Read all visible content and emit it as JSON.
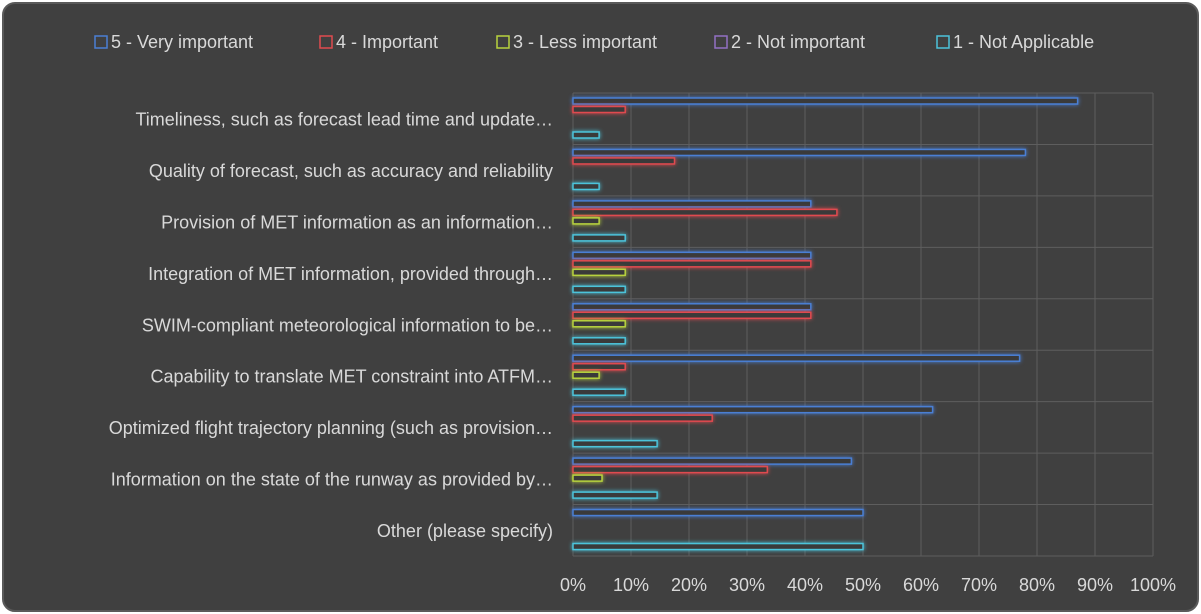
{
  "chart_data": {
    "type": "bar",
    "orientation": "horizontal",
    "categories": [
      "Timeliness, such as forecast lead time and update…",
      "Quality of forecast, such as accuracy and reliability",
      "Provision of MET information as an information…",
      "Integration of MET information, provided through…",
      "SWIM-compliant meteorological information to be…",
      "Capability to translate MET constraint into ATFM…",
      "Optimized flight trajectory planning (such as provision…",
      "Information on the state of the runway as provided by…",
      "Other (please specify)"
    ],
    "series": [
      {
        "name": "5 - Very important",
        "color": "#4a7fd4",
        "values": [
          87,
          78,
          41,
          41,
          41,
          77,
          62,
          48,
          50
        ]
      },
      {
        "name": "4 - Important",
        "color": "#e04a4f",
        "values": [
          9,
          17.5,
          45.5,
          41,
          41,
          9,
          24,
          33.5,
          0
        ]
      },
      {
        "name": "3 - Less important",
        "color": "#b7d23e",
        "values": [
          0,
          0,
          4.5,
          9,
          9,
          4.5,
          0,
          5,
          0
        ]
      },
      {
        "name": "2 - Not important",
        "color": "#9270c4",
        "values": [
          0,
          0,
          0,
          0,
          0,
          0,
          0,
          0,
          0
        ]
      },
      {
        "name": "1 - Not Applicable",
        "color": "#4cc3da",
        "values": [
          4.5,
          4.5,
          9,
          9,
          9,
          9,
          14.5,
          14.5,
          50
        ]
      }
    ],
    "xlim": [
      0,
      100
    ],
    "xticks": [
      {
        "value": 0,
        "label": "0%"
      },
      {
        "value": 10,
        "label": "10%"
      },
      {
        "value": 20,
        "label": "20%"
      },
      {
        "value": 30,
        "label": "30%"
      },
      {
        "value": 40,
        "label": "40%"
      },
      {
        "value": 50,
        "label": "50%"
      },
      {
        "value": 60,
        "label": "60%"
      },
      {
        "value": 70,
        "label": "70%"
      },
      {
        "value": 80,
        "label": "80%"
      },
      {
        "value": 90,
        "label": "90%"
      },
      {
        "value": 100,
        "label": "100%"
      }
    ],
    "grid": true,
    "legend": "top"
  }
}
